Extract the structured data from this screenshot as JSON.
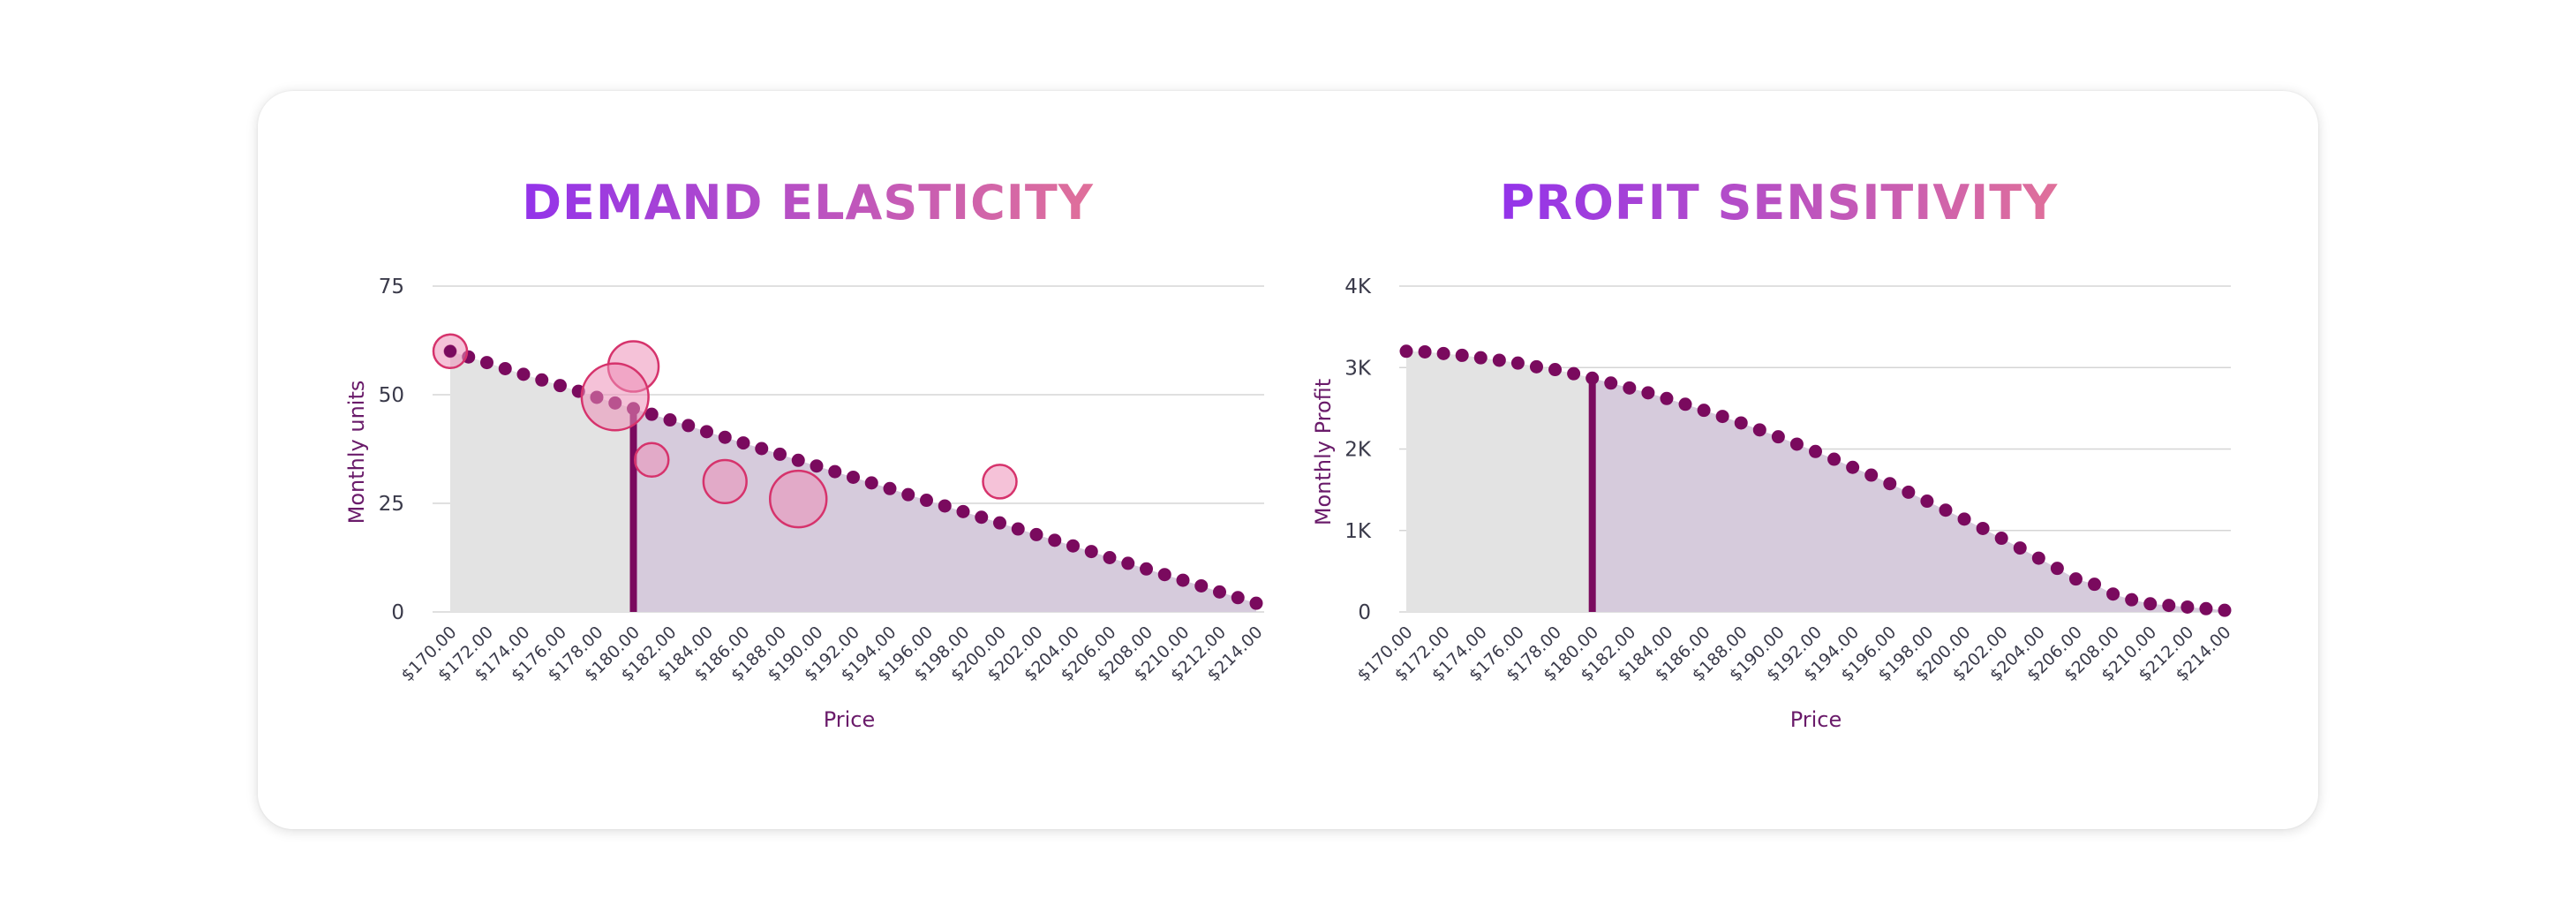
{
  "colors": {
    "title_gradient_start": "#9333ea",
    "title_gradient_end": "#e0709a",
    "curve_dot": "#7a0a5e",
    "current_price_line": "#7a0a5e",
    "fill_below_current": "#e3e3e3",
    "fill_above_current": "#d6cbdc",
    "bubble_fill": "#ec8fb8",
    "bubble_stroke": "#d6336c",
    "gridline": "#d5d5d5",
    "axis_title": "#6a1b6a"
  },
  "chart_data": [
    {
      "type": "scatter",
      "title": "DEMAND ELASTICITY",
      "xlabel": "Price",
      "ylabel": "Monthly units",
      "xlim": [
        170,
        214
      ],
      "ylim": [
        0,
        75
      ],
      "y_ticks": [
        0,
        25,
        50,
        75
      ],
      "y_tick_labels": [
        "0",
        "25",
        "50",
        "75"
      ],
      "x_ticks": [
        170,
        172,
        174,
        176,
        178,
        180,
        182,
        184,
        186,
        188,
        190,
        192,
        194,
        196,
        198,
        200,
        202,
        204,
        206,
        208,
        210,
        212,
        214
      ],
      "x_tick_labels": [
        "$170.00",
        "$172.00",
        "$174.00",
        "$176.00",
        "$178.00",
        "$180.00",
        "$182.00",
        "$184.00",
        "$186.00",
        "$188.00",
        "$190.00",
        "$192.00",
        "$194.00",
        "$196.00",
        "$198.00",
        "$200.00",
        "$202.00",
        "$204.00",
        "$206.00",
        "$208.00",
        "$210.00",
        "$212.00",
        "$214.00"
      ],
      "grid": true,
      "current_price": 180,
      "series": [
        {
          "kind": "curve",
          "x": [
            170,
            171,
            172,
            173,
            174,
            175,
            176,
            177,
            178,
            179,
            180,
            181,
            182,
            183,
            184,
            185,
            186,
            187,
            188,
            189,
            190,
            191,
            192,
            193,
            194,
            195,
            196,
            197,
            198,
            199,
            200,
            201,
            202,
            203,
            204,
            205,
            206,
            207,
            208,
            209,
            210,
            211,
            212,
            213,
            214
          ],
          "y": [
            60,
            58.7,
            57.4,
            56.0,
            54.7,
            53.4,
            52.1,
            50.8,
            49.4,
            48.1,
            46.8,
            45.5,
            44.2,
            42.9,
            41.5,
            40.2,
            38.9,
            37.6,
            36.3,
            34.9,
            33.6,
            32.3,
            31.0,
            29.7,
            28.4,
            27.0,
            25.7,
            24.4,
            23.1,
            21.8,
            20.5,
            19.1,
            17.8,
            16.5,
            15.2,
            13.9,
            12.5,
            11.2,
            9.9,
            8.6,
            7.3,
            6.0,
            4.6,
            3.3,
            2.0
          ]
        },
        {
          "kind": "observations",
          "x": [
            170,
            180,
            179,
            181,
            185,
            189,
            200
          ],
          "y": [
            60,
            56.5,
            49.5,
            35,
            30,
            26,
            30
          ],
          "size": [
            1,
            3,
            6,
            1,
            2,
            4,
            1
          ]
        }
      ]
    },
    {
      "type": "area",
      "title": "PROFIT SENSITIVITY",
      "xlabel": "Price",
      "ylabel": "Monthly Profit",
      "xlim": [
        170,
        214
      ],
      "ylim": [
        0,
        4000
      ],
      "y_ticks": [
        0,
        1000,
        2000,
        3000,
        4000
      ],
      "y_tick_labels": [
        "0",
        "1K",
        "2K",
        "3K",
        "4K"
      ],
      "x_ticks": [
        170,
        172,
        174,
        176,
        178,
        180,
        182,
        184,
        186,
        188,
        190,
        192,
        194,
        196,
        198,
        200,
        202,
        204,
        206,
        208,
        210,
        212,
        214
      ],
      "x_tick_labels": [
        "$170.00",
        "$172.00",
        "$174.00",
        "$176.00",
        "$178.00",
        "$180.00",
        "$182.00",
        "$184.00",
        "$186.00",
        "$188.00",
        "$190.00",
        "$192.00",
        "$194.00",
        "$196.00",
        "$198.00",
        "$200.00",
        "$202.00",
        "$204.00",
        "$206.00",
        "$208.00",
        "$210.00",
        "$212.00",
        "$214.00"
      ],
      "grid": true,
      "current_price": 180,
      "series": [
        {
          "kind": "curve",
          "x": [
            170,
            171,
            172,
            173,
            174,
            175,
            176,
            177,
            178,
            179,
            180,
            181,
            182,
            183,
            184,
            185,
            186,
            187,
            188,
            189,
            190,
            191,
            192,
            193,
            194,
            195,
            196,
            197,
            198,
            199,
            200,
            201,
            202,
            203,
            204,
            205,
            206,
            207,
            208,
            209,
            210,
            211,
            212,
            213,
            214
          ],
          "y": [
            3200,
            3193,
            3172,
            3150,
            3120,
            3090,
            3055,
            3010,
            2975,
            2925,
            2870,
            2810,
            2750,
            2690,
            2620,
            2550,
            2475,
            2400,
            2320,
            2235,
            2150,
            2060,
            1970,
            1875,
            1775,
            1680,
            1575,
            1470,
            1360,
            1250,
            1140,
            1025,
            905,
            785,
            660,
            535,
            405,
            340,
            220,
            150,
            100,
            80,
            60,
            40,
            20
          ]
        }
      ]
    }
  ]
}
